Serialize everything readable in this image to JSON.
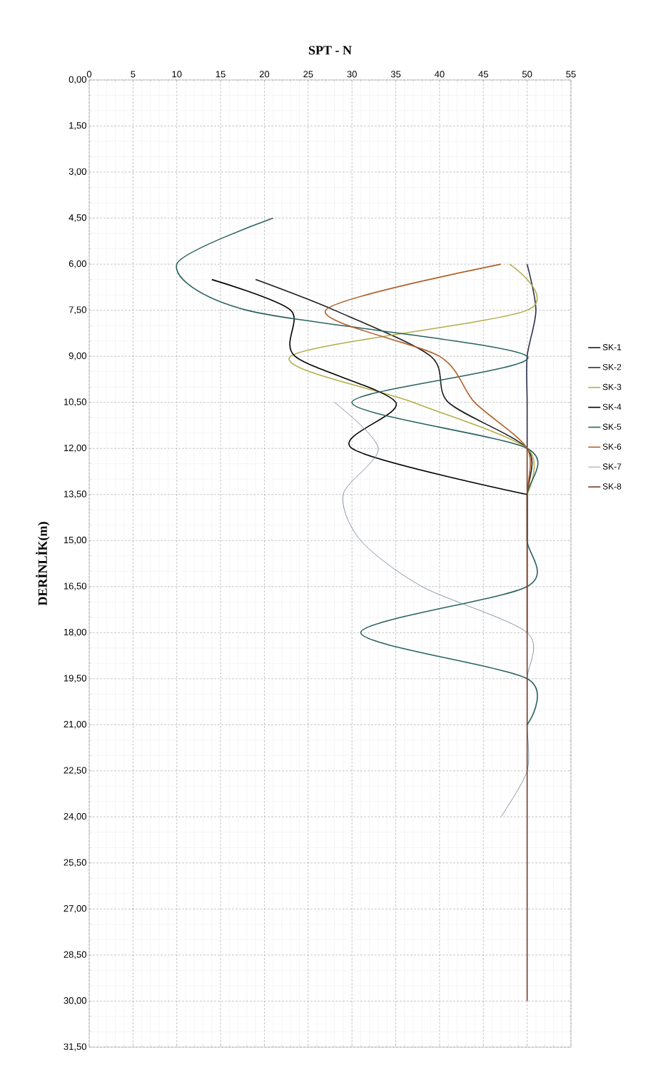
{
  "chart_data": {
    "type": "line",
    "xlabel": "SPT - N",
    "ylabel": "DERİNLİK(m)",
    "xlim": [
      0,
      55
    ],
    "xticks": [
      0,
      5,
      10,
      15,
      20,
      25,
      30,
      35,
      40,
      45,
      50,
      55
    ],
    "ylim": [
      31.5,
      0
    ],
    "yticks": [
      {
        "value": 0,
        "label": "0,00"
      },
      {
        "value": 1.5,
        "label": "1,50"
      },
      {
        "value": 3,
        "label": "3,00"
      },
      {
        "value": 4.5,
        "label": "4,50"
      },
      {
        "value": 6,
        "label": "6,00"
      },
      {
        "value": 7.5,
        "label": "7,50"
      },
      {
        "value": 9,
        "label": "9,00"
      },
      {
        "value": 10.5,
        "label": "10,50"
      },
      {
        "value": 12,
        "label": "12,00"
      },
      {
        "value": 13.5,
        "label": "13,50"
      },
      {
        "value": 15,
        "label": "15,00"
      },
      {
        "value": 16.5,
        "label": "16,50"
      },
      {
        "value": 18,
        "label": "18,00"
      },
      {
        "value": 19.5,
        "label": "19,50"
      },
      {
        "value": 21,
        "label": "21,00"
      },
      {
        "value": 22.5,
        "label": "22,50"
      },
      {
        "value": 24,
        "label": "24,00"
      },
      {
        "value": 25.5,
        "label": "25,50"
      },
      {
        "value": 27,
        "label": "27,00"
      },
      {
        "value": 28.5,
        "label": "28,50"
      },
      {
        "value": 30,
        "label": "30,00"
      },
      {
        "value": 31.5,
        "label": "31,50"
      }
    ],
    "grid": true,
    "legend": "right",
    "marker": "none",
    "line_style": "solid",
    "series": [
      {
        "name": "SK-1",
        "color": "#1c1c1c",
        "x": [
          19,
          28,
          39,
          41,
          50,
          50,
          50
        ],
        "values": [
          6.5,
          7.5,
          9,
          10.5,
          12,
          13.5,
          15
        ]
      },
      {
        "name": "SK-2",
        "color": "#2b2f4a",
        "x": [
          50,
          51,
          50,
          50,
          50
        ],
        "values": [
          6,
          7.5,
          9,
          10.5,
          12
        ]
      },
      {
        "name": "SK-3",
        "color": "#b4ad4a",
        "x": [
          48,
          50,
          23,
          37,
          50,
          50
        ],
        "values": [
          6,
          7.5,
          9,
          10.5,
          12,
          13.5
        ]
      },
      {
        "name": "SK-4",
        "color": "#000000",
        "x": [
          14,
          23,
          23.5,
          35,
          30,
          50
        ],
        "values": [
          6.5,
          7.5,
          9,
          10.5,
          12,
          13.5
        ]
      },
      {
        "name": "SK-5",
        "color": "#2a6262",
        "x": [
          21,
          10,
          18,
          50,
          30,
          50,
          50,
          50,
          50,
          31,
          50,
          50
        ],
        "values": [
          4.5,
          6,
          7.5,
          9,
          10.5,
          12,
          13.5,
          15,
          16.5,
          18,
          19.5,
          21
        ]
      },
      {
        "name": "SK-6",
        "color": "#b0602a",
        "x": [
          47,
          27,
          40,
          44,
          50,
          50,
          50,
          50,
          50
        ],
        "values": [
          6,
          7.5,
          9,
          10.5,
          12,
          13.5,
          15,
          16.5,
          18
        ]
      },
      {
        "name": "SK-7",
        "color": "#7a8a9a",
        "x": [
          28,
          33,
          29,
          31,
          38,
          50,
          50,
          50,
          50,
          47
        ],
        "values": [
          10.5,
          12,
          13.5,
          15,
          16.5,
          18,
          19.5,
          21,
          22.5,
          24
        ]
      },
      {
        "name": "SK-8",
        "color": "#7a3a2a",
        "x": [
          50,
          50,
          50,
          50,
          50,
          50,
          50,
          50,
          50,
          50,
          50,
          50,
          50
        ],
        "values": [
          12,
          13.5,
          15,
          16.5,
          18,
          19.5,
          21,
          22.5,
          24,
          25.5,
          27,
          28.5,
          30
        ]
      }
    ]
  }
}
